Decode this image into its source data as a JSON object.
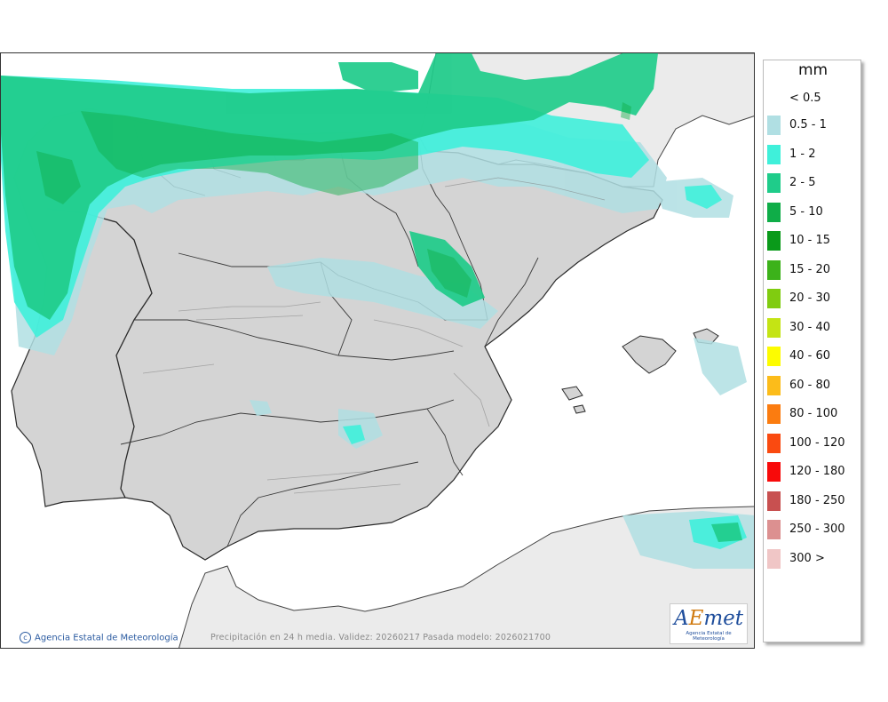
{
  "legend": {
    "title": "mm",
    "entries": [
      {
        "label": "< 0.5",
        "color": ""
      },
      {
        "label": "0.5 - 1",
        "color": "#b0dfe3"
      },
      {
        "label": "1 - 2",
        "color": "#3ff0da"
      },
      {
        "label": "2 - 5",
        "color": "#1fcc8a"
      },
      {
        "label": "5 - 10",
        "color": "#0fad48"
      },
      {
        "label": "10 - 15",
        "color": "#0a9a1a"
      },
      {
        "label": "15 - 20",
        "color": "#3cb21a"
      },
      {
        "label": "20 - 30",
        "color": "#80cc10"
      },
      {
        "label": "30 - 40",
        "color": "#c4e414"
      },
      {
        "label": "40 - 60",
        "color": "#fdfc00"
      },
      {
        "label": "60 - 80",
        "color": "#fcbc1a"
      },
      {
        "label": "80 - 100",
        "color": "#fb7c10"
      },
      {
        "label": "100 - 120",
        "color": "#fa4a10"
      },
      {
        "label": "120 - 180",
        "color": "#f80a0a"
      },
      {
        "label": "180 - 250",
        "color": "#c85050"
      },
      {
        "label": "250 - 300",
        "color": "#dc9090"
      },
      {
        "label": "300 >",
        "color": "#f0c6c6"
      }
    ]
  },
  "footer": {
    "credit": "Agencia Estatal de Meteorología",
    "caption": "Precipitación en 24 h media. Validez: 20260217 Pasada modelo: 2026021700"
  },
  "logo": {
    "brand_prefix": "A",
    "brand_mid": "E",
    "brand_suffix": "met",
    "subtitle": "Agencia Estatal de Meteorología"
  },
  "colors": {
    "sea": "#ffffff",
    "land": "#d4d4d4",
    "foreign_land": "#ebebeb",
    "border": "#2a2a2a"
  }
}
